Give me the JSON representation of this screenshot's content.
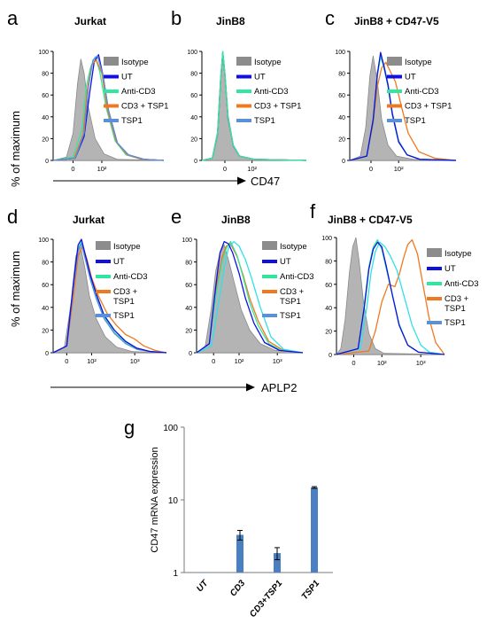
{
  "figure": {
    "row1_ylabel": "% of maximum",
    "row1_xlabel": "CD47",
    "row2_ylabel": "% of maximum",
    "row2_xlabel": "APLP2"
  },
  "colors": {
    "Isotype": "#a8a8a8",
    "UT": "#1010e0",
    "Anti-CD3": "#33e6a0",
    "CD3 + TSP1": "#f07820",
    "TSP1": "#5b8fd6",
    "cyan_trace": "#30e0e8",
    "bar": "#4a7fc1"
  },
  "chart_data": [
    {
      "panel": "a",
      "title": "Jurkat",
      "type": "line",
      "marker": "CD47",
      "yticks": [
        "0",
        "20",
        "40",
        "60",
        "80",
        "100"
      ],
      "ylim": [
        0,
        100
      ],
      "xticks": [
        "0",
        "10²"
      ],
      "legend": [
        "Isotype",
        "UT",
        "Anti-CD3",
        "CD3 + TSP1",
        "TSP1"
      ],
      "series": [
        {
          "name": "Isotype",
          "filled": true,
          "x": [
            0.0,
            0.12,
            0.18,
            0.22,
            0.25,
            0.28,
            0.32,
            0.38,
            0.46,
            0.58,
            1.0
          ],
          "y": [
            0,
            3,
            25,
            70,
            93,
            80,
            48,
            20,
            6,
            1,
            0
          ]
        },
        {
          "name": "Anti-CD3",
          "x": [
            0.0,
            0.18,
            0.26,
            0.3,
            0.34,
            0.38,
            0.42,
            0.48,
            0.56,
            0.66,
            0.8,
            1.0
          ],
          "y": [
            0,
            3,
            28,
            68,
            86,
            95,
            82,
            48,
            18,
            5,
            1,
            0
          ]
        },
        {
          "name": "UT",
          "x": [
            0.0,
            0.2,
            0.28,
            0.33,
            0.37,
            0.41,
            0.45,
            0.5,
            0.58,
            0.68,
            0.82,
            1.0
          ],
          "y": [
            0,
            2,
            22,
            62,
            90,
            97,
            78,
            46,
            16,
            5,
            1,
            0
          ]
        },
        {
          "name": "CD3 + TSP1",
          "x": [
            0.0,
            0.19,
            0.27,
            0.31,
            0.35,
            0.39,
            0.44,
            0.49,
            0.57,
            0.67,
            0.8,
            1.0
          ],
          "y": [
            0,
            2,
            24,
            66,
            88,
            92,
            80,
            47,
            17,
            5,
            1,
            0
          ]
        },
        {
          "name": "TSP1",
          "x": [
            0.0,
            0.2,
            0.28,
            0.32,
            0.36,
            0.4,
            0.45,
            0.5,
            0.58,
            0.68,
            0.82,
            1.0
          ],
          "y": [
            0,
            2,
            25,
            68,
            92,
            96,
            78,
            46,
            16,
            5,
            1,
            0
          ]
        }
      ]
    },
    {
      "panel": "b",
      "title": "JinB8",
      "type": "line",
      "marker": "CD47",
      "yticks": [
        "0",
        "20",
        "40",
        "60",
        "80",
        "100"
      ],
      "ylim": [
        0,
        100
      ],
      "xticks": [
        "0",
        "10²"
      ],
      "legend": [
        "Isotype",
        "UT",
        "Anti-CD3",
        "CD3 + TSP1",
        "TSP1"
      ],
      "series": [
        {
          "name": "Isotype",
          "filled": true,
          "x": [
            0.0,
            0.1,
            0.15,
            0.18,
            0.2,
            0.22,
            0.25,
            0.3,
            0.36,
            0.5,
            1.0
          ],
          "y": [
            0,
            2,
            25,
            75,
            100,
            80,
            40,
            14,
            4,
            1,
            0
          ]
        },
        {
          "name": "UT",
          "x": [
            0.0,
            0.1,
            0.15,
            0.18,
            0.2,
            0.22,
            0.25,
            0.3,
            0.36,
            0.5,
            1.0
          ],
          "y": [
            0,
            2,
            24,
            74,
            99,
            79,
            39,
            14,
            4,
            1,
            0
          ]
        },
        {
          "name": "CD3 + TSP1",
          "x": [
            0.0,
            0.1,
            0.15,
            0.18,
            0.2,
            0.22,
            0.25,
            0.3,
            0.36,
            0.5,
            1.0
          ],
          "y": [
            0,
            2,
            26,
            76,
            98,
            80,
            41,
            14,
            4,
            1,
            0
          ]
        },
        {
          "name": "TSP1",
          "x": [
            0.0,
            0.1,
            0.15,
            0.18,
            0.2,
            0.22,
            0.25,
            0.3,
            0.36,
            0.5,
            1.0
          ],
          "y": [
            0,
            2,
            24,
            73,
            99,
            78,
            40,
            13,
            4,
            1,
            0
          ]
        },
        {
          "name": "Anti-CD3",
          "x": [
            0.0,
            0.1,
            0.15,
            0.18,
            0.2,
            0.22,
            0.25,
            0.3,
            0.36,
            0.5,
            1.0
          ],
          "y": [
            0,
            2,
            25,
            75,
            100,
            79,
            40,
            14,
            4,
            1,
            0
          ]
        }
      ]
    },
    {
      "panel": "c",
      "title": "JinB8 + CD47-V5",
      "type": "line",
      "marker": "CD47",
      "yticks": [
        "0",
        "20",
        "40",
        "60",
        "80",
        "100"
      ],
      "ylim": [
        0,
        100
      ],
      "xticks": [
        "0",
        "10²"
      ],
      "legend": [
        "Isotype",
        "UT",
        "Anti-CD3",
        "CD3 + TSP1",
        "TSP1"
      ],
      "series": [
        {
          "name": "Isotype",
          "filled": true,
          "x": [
            0.0,
            0.1,
            0.15,
            0.19,
            0.22,
            0.26,
            0.3,
            0.36,
            0.44,
            0.6,
            1.0
          ],
          "y": [
            0,
            4,
            30,
            78,
            96,
            72,
            38,
            14,
            4,
            1,
            0
          ]
        },
        {
          "name": "CD3 + TSP1",
          "x": [
            0.0,
            0.16,
            0.22,
            0.26,
            0.3,
            0.34,
            0.38,
            0.43,
            0.48,
            0.55,
            0.65,
            0.8,
            1.0
          ],
          "y": [
            0,
            4,
            34,
            68,
            85,
            90,
            82,
            72,
            52,
            25,
            8,
            2,
            0
          ]
        },
        {
          "name": "TSP1",
          "x": [
            0.0,
            0.16,
            0.22,
            0.26,
            0.29,
            0.32,
            0.36,
            0.4,
            0.46,
            0.54,
            0.66,
            1.0
          ],
          "y": [
            0,
            4,
            38,
            80,
            97,
            88,
            70,
            44,
            18,
            5,
            1,
            0
          ]
        },
        {
          "name": "Anti-CD3",
          "x": [
            0.0,
            0.16,
            0.22,
            0.26,
            0.29,
            0.32,
            0.36,
            0.4,
            0.46,
            0.54,
            0.66,
            1.0
          ],
          "y": [
            0,
            4,
            36,
            78,
            95,
            86,
            68,
            42,
            17,
            5,
            1,
            0
          ]
        },
        {
          "name": "UT",
          "x": [
            0.0,
            0.16,
            0.22,
            0.26,
            0.29,
            0.32,
            0.36,
            0.4,
            0.46,
            0.54,
            0.66,
            1.0
          ],
          "y": [
            0,
            4,
            37,
            79,
            99,
            87,
            69,
            43,
            17,
            5,
            1,
            0
          ]
        }
      ]
    },
    {
      "panel": "d",
      "title": "Jurkat",
      "type": "line",
      "marker": "APLP2",
      "yticks": [
        "0",
        "20",
        "40",
        "60",
        "80",
        "100"
      ],
      "ylim": [
        0,
        100
      ],
      "xticks": [
        "0",
        "10²",
        "10³"
      ],
      "legend": [
        "Isotype",
        "UT",
        "Anti-CD3",
        "CD3 + TSP1",
        "TSP1"
      ],
      "series": [
        {
          "name": "Isotype",
          "filled": true,
          "x": [
            0.0,
            0.1,
            0.16,
            0.2,
            0.24,
            0.28,
            0.32,
            0.38,
            0.46,
            0.56,
            0.7,
            1.0
          ],
          "y": [
            0,
            5,
            45,
            85,
            95,
            75,
            50,
            30,
            14,
            5,
            1,
            0
          ]
        },
        {
          "name": "CD3 + TSP1",
          "x": [
            0.0,
            0.12,
            0.18,
            0.22,
            0.26,
            0.3,
            0.34,
            0.4,
            0.48,
            0.56,
            0.64,
            0.72,
            0.8,
            0.9,
            1.0
          ],
          "y": [
            0,
            6,
            50,
            85,
            94,
            82,
            66,
            50,
            34,
            24,
            16,
            12,
            6,
            2,
            0
          ]
        },
        {
          "name": "Anti-CD3",
          "x": [
            0.0,
            0.12,
            0.18,
            0.22,
            0.25,
            0.29,
            0.33,
            0.38,
            0.45,
            0.54,
            0.64,
            0.74,
            0.86,
            1.0
          ],
          "y": [
            0,
            6,
            60,
            92,
            98,
            82,
            66,
            50,
            32,
            18,
            9,
            4,
            1,
            0
          ]
        },
        {
          "name": "TSP1",
          "x": [
            0.0,
            0.12,
            0.18,
            0.22,
            0.25,
            0.29,
            0.33,
            0.38,
            0.45,
            0.54,
            0.64,
            0.74,
            0.86,
            1.0
          ],
          "y": [
            0,
            6,
            58,
            90,
            96,
            80,
            64,
            48,
            30,
            17,
            8,
            3,
            1,
            0
          ]
        },
        {
          "name": "UT",
          "x": [
            0.0,
            0.12,
            0.18,
            0.22,
            0.25,
            0.29,
            0.33,
            0.38,
            0.45,
            0.54,
            0.64,
            0.74,
            0.86,
            1.0
          ],
          "y": [
            0,
            6,
            62,
            95,
            100,
            84,
            68,
            52,
            33,
            20,
            10,
            4,
            1,
            0
          ]
        }
      ]
    },
    {
      "panel": "e",
      "title": "JinB8",
      "type": "line",
      "marker": "APLP2",
      "yticks": [
        "0",
        "20",
        "40",
        "60",
        "80",
        "100"
      ],
      "ylim": [
        0,
        100
      ],
      "xticks": [
        "0",
        "10²",
        "10³"
      ],
      "legend": [
        "Isotype",
        "UT",
        "Anti-CD3",
        "CD3 + TSP1",
        "TSP1"
      ],
      "series": [
        {
          "name": "Isotype",
          "filled": true,
          "x": [
            0.0,
            0.08,
            0.14,
            0.18,
            0.22,
            0.26,
            0.3,
            0.36,
            0.42,
            0.5,
            0.6,
            0.74,
            1.0
          ],
          "y": [
            0,
            5,
            40,
            72,
            88,
            95,
            82,
            60,
            38,
            20,
            8,
            2,
            0
          ]
        },
        {
          "name": "CD3 + TSP1",
          "x": [
            0.0,
            0.12,
            0.18,
            0.24,
            0.28,
            0.32,
            0.38,
            0.44,
            0.5,
            0.58,
            0.68,
            0.8,
            1.0
          ],
          "y": [
            0,
            8,
            55,
            84,
            94,
            96,
            85,
            68,
            48,
            28,
            10,
            3,
            0
          ]
        },
        {
          "name": "Anti-CD3",
          "x": [
            0.0,
            0.12,
            0.18,
            0.24,
            0.28,
            0.32,
            0.38,
            0.44,
            0.5,
            0.58,
            0.68,
            0.8,
            1.0
          ],
          "y": [
            0,
            8,
            50,
            80,
            92,
            98,
            86,
            66,
            44,
            24,
            8,
            2,
            0
          ]
        },
        {
          "name": "cyan",
          "color_key": "cyan_trace",
          "x": [
            0.0,
            0.14,
            0.2,
            0.26,
            0.3,
            0.35,
            0.4,
            0.46,
            0.52,
            0.6,
            0.7,
            0.82,
            1.0
          ],
          "y": [
            0,
            6,
            40,
            75,
            92,
            98,
            94,
            82,
            65,
            40,
            14,
            3,
            0
          ]
        },
        {
          "name": "UT",
          "x": [
            0.0,
            0.12,
            0.18,
            0.22,
            0.26,
            0.3,
            0.34,
            0.4,
            0.46,
            0.54,
            0.64,
            0.78,
            1.0
          ],
          "y": [
            0,
            8,
            58,
            88,
            98,
            96,
            88,
            70,
            48,
            26,
            9,
            2,
            0
          ]
        }
      ]
    },
    {
      "panel": "f",
      "title": "JinB8 + CD47-V5",
      "type": "line",
      "marker": "APLP2",
      "yticks": [
        "0",
        "20",
        "40",
        "60",
        "80",
        "100"
      ],
      "ylim": [
        0,
        100
      ],
      "xticks": [
        "0",
        "10²",
        "10³"
      ],
      "legend": [
        "Isotype",
        "UT",
        "Anti-CD3",
        "CD3 + TSP1",
        "TSP1"
      ],
      "series": [
        {
          "name": "Isotype",
          "filled": true,
          "x": [
            0.0,
            0.04,
            0.08,
            0.12,
            0.15,
            0.18,
            0.21,
            0.25,
            0.3,
            0.36,
            0.44,
            1.0
          ],
          "y": [
            0,
            5,
            30,
            70,
            92,
            100,
            80,
            45,
            18,
            5,
            1,
            0
          ]
        },
        {
          "name": "CD3 + TSP1",
          "x": [
            0.0,
            0.3,
            0.36,
            0.42,
            0.48,
            0.54,
            0.58,
            0.62,
            0.66,
            0.7,
            0.75,
            0.8,
            0.86,
            0.92,
            1.0
          ],
          "y": [
            0,
            3,
            20,
            45,
            60,
            58,
            68,
            82,
            94,
            98,
            86,
            60,
            30,
            10,
            0
          ]
        },
        {
          "name": "cyan",
          "color_key": "cyan_trace",
          "x": [
            0.0,
            0.22,
            0.28,
            0.32,
            0.36,
            0.4,
            0.45,
            0.5,
            0.56,
            0.62,
            0.7,
            0.78,
            0.86,
            1.0
          ],
          "y": [
            0,
            5,
            40,
            70,
            88,
            96,
            92,
            84,
            72,
            52,
            25,
            8,
            2,
            0
          ]
        },
        {
          "name": "Anti-CD3",
          "x": [
            0.0,
            0.2,
            0.26,
            0.3,
            0.34,
            0.38,
            0.42,
            0.46,
            0.52,
            0.58,
            0.66,
            0.76,
            1.0
          ],
          "y": [
            0,
            5,
            45,
            75,
            92,
            98,
            90,
            74,
            50,
            26,
            8,
            2,
            0
          ]
        },
        {
          "name": "UT",
          "x": [
            0.0,
            0.2,
            0.26,
            0.3,
            0.34,
            0.38,
            0.42,
            0.46,
            0.52,
            0.58,
            0.66,
            0.76,
            1.0
          ],
          "y": [
            0,
            5,
            42,
            73,
            90,
            96,
            92,
            76,
            50,
            25,
            8,
            2,
            0
          ]
        }
      ]
    },
    {
      "panel": "g",
      "type": "bar",
      "ylabel": "CD47 mRNA  expression",
      "yscale": "log",
      "ylim": [
        1,
        100
      ],
      "yticks": [
        "1",
        "10",
        "100"
      ],
      "categories": [
        "UT",
        "CD3",
        "CD3+TSP1",
        "TSP1"
      ],
      "values": [
        1.0,
        3.3,
        1.85,
        14.8
      ],
      "errors": [
        0.0,
        0.5,
        0.35,
        0.4
      ]
    }
  ]
}
